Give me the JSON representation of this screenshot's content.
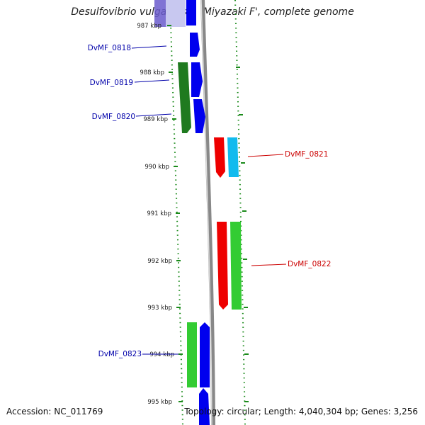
{
  "title": "Desulfovibrio vulgaris str. 'Miyazaki F', complete genome",
  "accession": "Accession: NC_011769",
  "summary": "Topology: circular; Length: 4,040,304 bp; Genes: 3,256",
  "colors": {
    "tick": "#1a8a1a",
    "backbone": "#888888",
    "forward_gene": "#0000ee",
    "cds_green_dark": "#1f7a1f",
    "cds_green": "#33cc33",
    "reverse_gene": "#ee0000",
    "cyan_gene": "#11bbee",
    "left_label": "#0000aa",
    "right_label": "#cc0000"
  },
  "ticks": [
    "987 kbp",
    "988 kbp",
    "989 kbp",
    "990 kbp",
    "991 kbp",
    "992 kbp",
    "993 kbp",
    "994 kbp",
    "995 kbp"
  ],
  "gene_labels": [
    "DvMF_0818",
    "DvMF_0819",
    "DvMF_0820",
    "DvMF_0821",
    "DvMF_0822",
    "DvMF_0823"
  ]
}
